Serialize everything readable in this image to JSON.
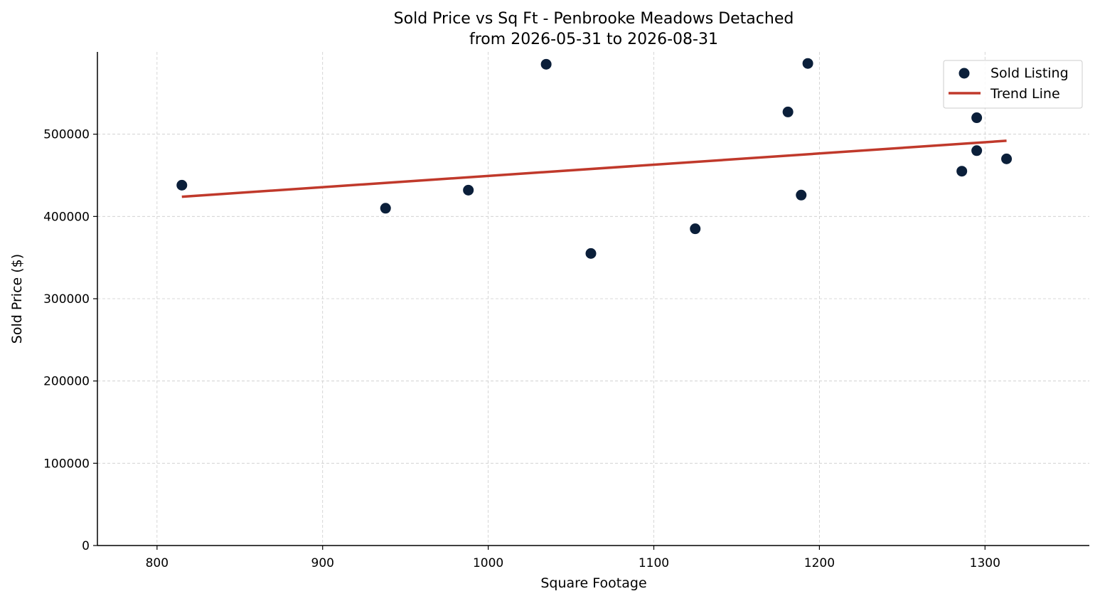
{
  "chart_data": {
    "type": "scatter",
    "title": "Sold Price vs Sq Ft - Penbrooke Meadows Detached",
    "subtitle": "from 2026-05-31 to 2026-08-31",
    "xlabel": "Square Footage",
    "ylabel": "Sold Price ($)",
    "xlim": [
      764,
      1363
    ],
    "ylim": [
      0,
      600000
    ],
    "x_ticks": [
      800,
      900,
      1000,
      1100,
      1200,
      1300
    ],
    "x_tick_labels": [
      "800",
      "900",
      "1000",
      "1100",
      "1200",
      "1300"
    ],
    "y_ticks": [
      0,
      100000,
      200000,
      300000,
      400000,
      500000
    ],
    "y_tick_labels": [
      "0",
      "100000",
      "200000",
      "300000",
      "400000",
      "500000"
    ],
    "grid": true,
    "legend_position": "top-right",
    "series": [
      {
        "name": "Sold Listing",
        "kind": "scatter",
        "color": "#0b1f3a",
        "points": [
          {
            "x": 815,
            "y": 438000
          },
          {
            "x": 938,
            "y": 410000
          },
          {
            "x": 988,
            "y": 432000
          },
          {
            "x": 1035,
            "y": 585000
          },
          {
            "x": 1062,
            "y": 355000
          },
          {
            "x": 1125,
            "y": 385000
          },
          {
            "x": 1181,
            "y": 527000
          },
          {
            "x": 1189,
            "y": 426000
          },
          {
            "x": 1193,
            "y": 586000
          },
          {
            "x": 1286,
            "y": 455000
          },
          {
            "x": 1295,
            "y": 520000
          },
          {
            "x": 1295,
            "y": 480000
          },
          {
            "x": 1313,
            "y": 470000
          }
        ]
      },
      {
        "name": "Trend Line",
        "kind": "line",
        "color": "#c0392b",
        "points": [
          {
            "x": 815,
            "y": 424000
          },
          {
            "x": 1313,
            "y": 492000
          }
        ]
      }
    ]
  }
}
